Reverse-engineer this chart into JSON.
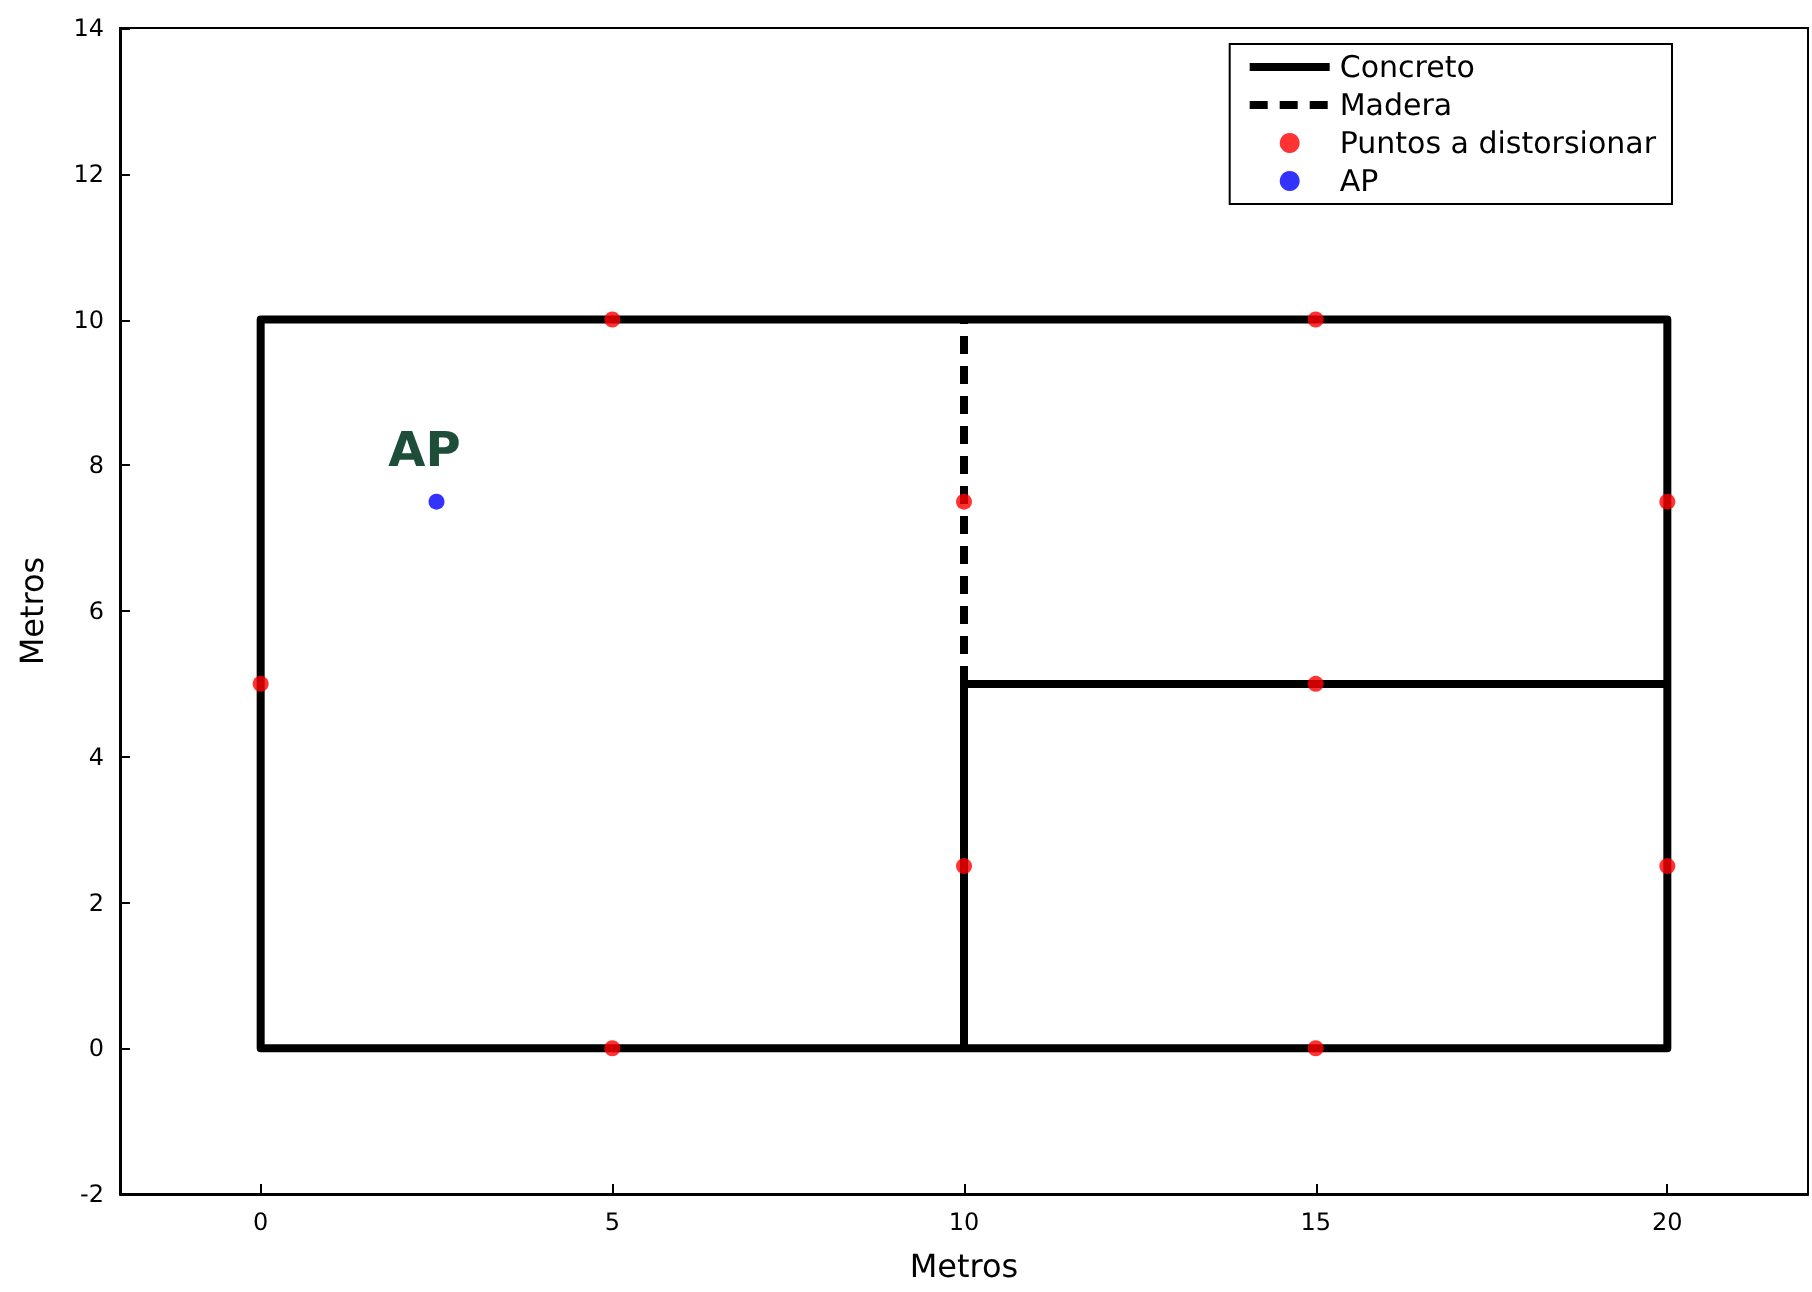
{
  "chart_data": {
    "type": "line",
    "xlabel": "Metros",
    "ylabel": "Metros",
    "xlim": [
      -2,
      22
    ],
    "xticks": [
      0,
      5,
      10,
      15,
      20
    ],
    "ylim": [
      -2,
      14
    ],
    "yticks": [
      -2,
      0,
      2,
      4,
      6,
      8,
      10,
      12,
      14
    ],
    "grid": false,
    "legend": "top right",
    "series": [
      {
        "name": "Concreto",
        "color": "#000000",
        "line_style": "solid",
        "marker": "none",
        "x": [
          10,
          10,
          20,
          20,
          10,
          0,
          0,
          10,
          20,
          20
        ],
        "values": [
          0,
          5,
          5,
          10,
          10,
          10,
          0,
          0,
          0,
          5
        ]
      },
      {
        "name": "Madera",
        "color": "#000000",
        "line_style": "dashed",
        "marker": "none",
        "x": [
          10,
          10
        ],
        "values": [
          5,
          10
        ]
      },
      {
        "name": "Puntos a distorsionar",
        "type": "scatter",
        "color": "#ff0000",
        "marker": "circle",
        "x": [
          0,
          5,
          5,
          10,
          10,
          15,
          15,
          15,
          20,
          20
        ],
        "values": [
          5,
          10,
          0,
          7.5,
          2.5,
          10,
          5,
          0,
          7.5,
          2.5
        ]
      },
      {
        "name": "AP",
        "type": "scatter",
        "color": "#0000ff",
        "marker": "circle",
        "x": [
          2.5
        ],
        "values": [
          7.5
        ]
      }
    ],
    "annotations": [
      {
        "text": "AP",
        "x": 2.5,
        "y": 7.5
      }
    ]
  }
}
